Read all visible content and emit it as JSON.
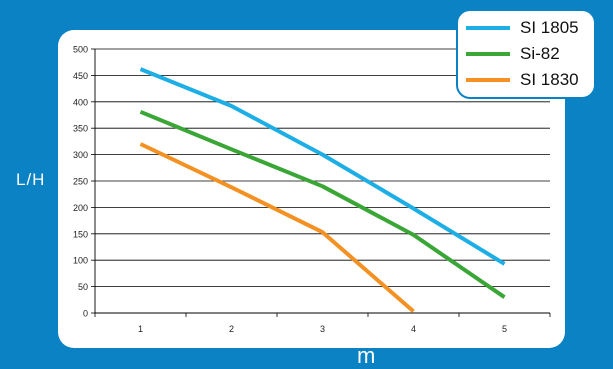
{
  "chart_data": {
    "type": "line",
    "x": [
      1,
      2,
      3,
      4,
      5
    ],
    "xlabel": "m",
    "ylabel": "L/H",
    "ylim": [
      0,
      500
    ],
    "yticks": [
      0,
      50,
      100,
      150,
      200,
      250,
      300,
      350,
      400,
      450,
      500
    ],
    "grid": true,
    "legend_position": "top-right",
    "series": [
      {
        "name": "SI 1805",
        "color": "#1eaee6",
        "points": [
          [
            1,
            462
          ],
          [
            2,
            392
          ],
          [
            3,
            300
          ],
          [
            4,
            198
          ],
          [
            5,
            93
          ]
        ]
      },
      {
        "name": "Si-82",
        "color": "#3aa636",
        "points": [
          [
            1,
            381
          ],
          [
            2,
            310
          ],
          [
            3,
            240
          ],
          [
            4,
            148
          ],
          [
            5,
            30
          ]
        ]
      },
      {
        "name": "SI 1830",
        "color": "#f39122",
        "points": [
          [
            1,
            320
          ],
          [
            2,
            238
          ],
          [
            3,
            153
          ],
          [
            4,
            3
          ]
        ]
      }
    ]
  }
}
